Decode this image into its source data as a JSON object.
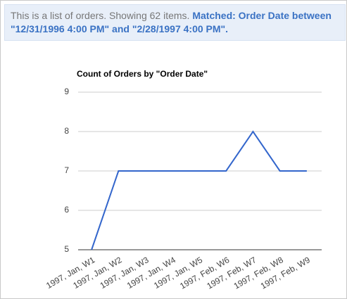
{
  "banner": {
    "text": "This is a list of orders. Showing 62 items.",
    "filter": "Matched: Order Date between \"12/31/1996 4:00 PM\" and \"2/28/1997 4:00 PM\"."
  },
  "chart_data": {
    "type": "line",
    "title": "Count of Orders by \"Order Date\"",
    "categories": [
      "1997, Jan, W1",
      "1997, Jan, W2",
      "1997, Jan, W3",
      "1997, Jan, W4",
      "1997, Jan, W5",
      "1997, Feb, W6",
      "1997, Feb, W7",
      "1997, Feb, W8",
      "1997, Feb, W9"
    ],
    "values": [
      5,
      7,
      7,
      7,
      7,
      7,
      8,
      7,
      7
    ],
    "color": "#3366cc",
    "ylim": [
      5,
      9
    ],
    "yticks": [
      5,
      6,
      7,
      8,
      9
    ],
    "grid": true
  }
}
